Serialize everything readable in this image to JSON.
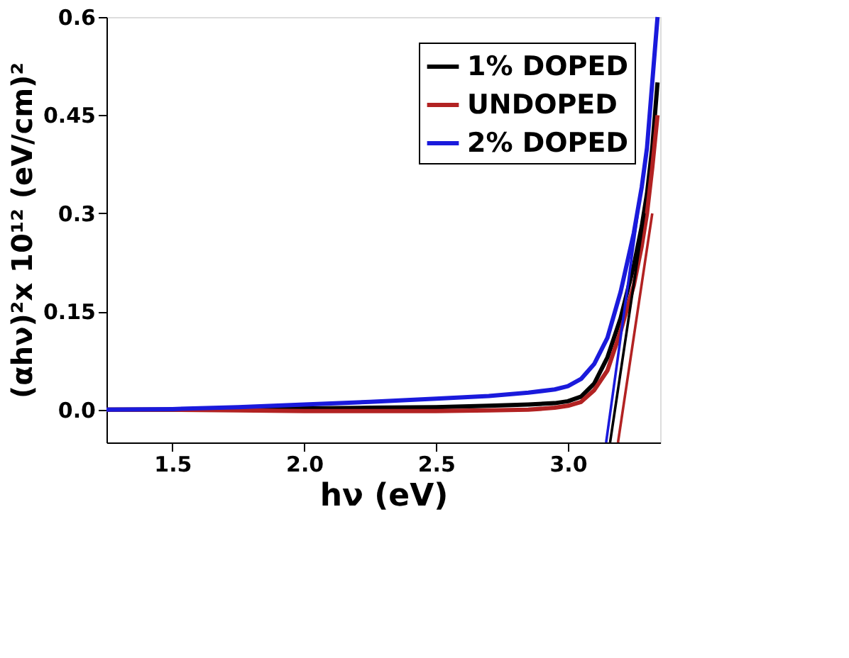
{
  "chart_data": {
    "type": "line",
    "xlabel": "hν (eV)",
    "ylabel": "(αhν)²x 10¹² (eV/cm)²",
    "xlim": [
      1.25,
      3.35
    ],
    "ylim": [
      -0.05,
      0.6
    ],
    "xticks": [
      1.5,
      {
        "value": 2,
        "label": "2.0"
      },
      2.5,
      {
        "value": 3,
        "label": "3.0"
      }
    ],
    "yticks": [
      {
        "value": 0,
        "label": "0.0"
      },
      0.15,
      0.3,
      0.45,
      0.6
    ],
    "legend": "top right",
    "grid": false,
    "series": [
      {
        "name": "1% DOPED",
        "color": "#000000",
        "x": [
          1.25,
          1.5,
          1.75,
          2.0,
          2.25,
          2.5,
          2.7,
          2.85,
          2.95,
          3.0,
          3.05,
          3.1,
          3.15,
          3.2,
          3.25,
          3.28,
          3.3,
          3.32,
          3.34
        ],
        "values": [
          0.0,
          0.0,
          0.001,
          0.002,
          0.003,
          0.004,
          0.006,
          0.008,
          0.01,
          0.013,
          0.02,
          0.04,
          0.08,
          0.14,
          0.22,
          0.28,
          0.33,
          0.4,
          0.5
        ]
      },
      {
        "name": "UNDOPED",
        "color": "#b22222",
        "x": [
          1.25,
          1.5,
          1.75,
          2.0,
          2.25,
          2.5,
          2.7,
          2.85,
          2.95,
          3.0,
          3.05,
          3.1,
          3.15,
          3.2,
          3.25,
          3.28,
          3.3,
          3.32,
          3.34
        ],
        "values": [
          0.0,
          0.0,
          -0.001,
          -0.002,
          -0.002,
          -0.002,
          -0.001,
          0.0,
          0.003,
          0.006,
          0.012,
          0.03,
          0.06,
          0.12,
          0.19,
          0.25,
          0.3,
          0.37,
          0.45
        ]
      },
      {
        "name": "2% DOPED",
        "color": "#1a1adc",
        "x": [
          1.25,
          1.5,
          1.75,
          2.0,
          2.25,
          2.5,
          2.7,
          2.85,
          2.95,
          3.0,
          3.05,
          3.1,
          3.15,
          3.2,
          3.25,
          3.28,
          3.3,
          3.32,
          3.34
        ],
        "values": [
          0.0,
          0.001,
          0.004,
          0.008,
          0.012,
          0.017,
          0.021,
          0.026,
          0.031,
          0.036,
          0.047,
          0.07,
          0.11,
          0.18,
          0.27,
          0.34,
          0.4,
          0.5,
          0.6
        ]
      },
      {
        "type": "line",
        "color": "#000000",
        "x": [
          3.16,
          3.29
        ],
        "values": [
          -0.05,
          0.3
        ]
      },
      {
        "type": "line",
        "color": "#b22222",
        "x": [
          3.19,
          3.32
        ],
        "values": [
          -0.05,
          0.3
        ]
      },
      {
        "type": "line",
        "color": "#1a1adc",
        "x": [
          3.145,
          3.265
        ],
        "values": [
          -0.05,
          0.3
        ]
      }
    ]
  }
}
